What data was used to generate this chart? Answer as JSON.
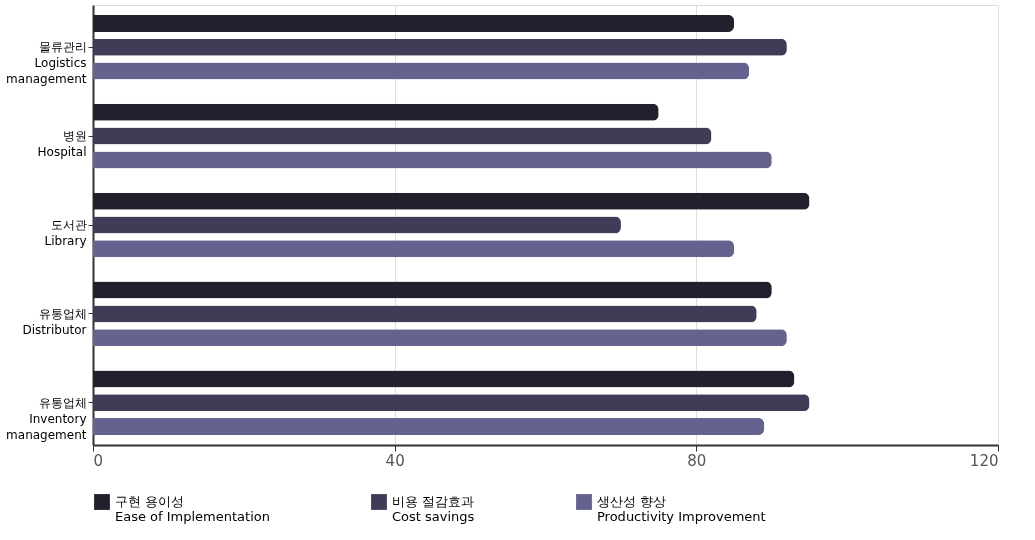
{
  "chart_data": {
    "type": "bar",
    "orientation": "horizontal",
    "categories": [
      "물류관리\nLogistics\nmanagement",
      "병원\nHospital",
      "도서관\nLibrary",
      "유통업체\nDistributor",
      "유통업체\nInventory\nmanagement"
    ],
    "series": [
      {
        "name": "구현 용이성\nEase of Implementation",
        "color": "#21212e",
        "values": [
          85,
          75,
          95,
          90,
          93
        ]
      },
      {
        "name": "비용 절감효과\nCost savings",
        "color": "#3e3c57",
        "values": [
          92,
          82,
          70,
          88,
          95
        ]
      },
      {
        "name": "생산성 향상\nProductivity Improvement",
        "color": "#64628e",
        "values": [
          87,
          90,
          85,
          92,
          89
        ]
      }
    ],
    "xlim": [
      0,
      120
    ],
    "xticks": [
      0,
      40,
      80,
      120
    ],
    "grid": "x",
    "legend": "bottom"
  }
}
